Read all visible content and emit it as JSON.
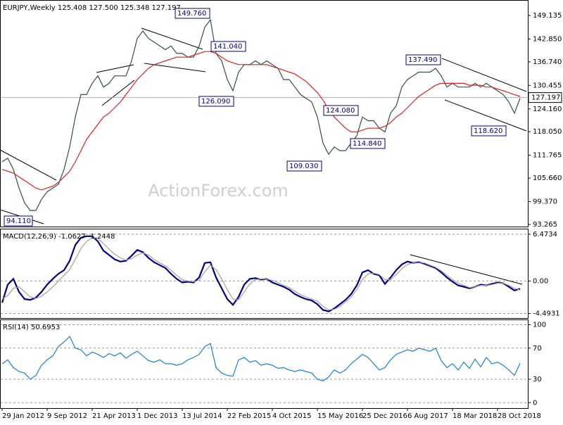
{
  "chart_data": [
    {
      "type": "line",
      "title": "EURJPY,Weekly  125.408 127.500 125.348 127.197",
      "xlim": [
        -0.375,
        93.375
      ],
      "xticks": [
        {
          "value": 0,
          "label": "29 Jan 2012"
        },
        {
          "value": 8,
          "label": "9 Sep 2012"
        },
        {
          "value": 16,
          "label": "21 Apr 2013"
        },
        {
          "value": 24,
          "label": "1 Dec 2013"
        },
        {
          "value": 32,
          "label": "13 Jul 2014"
        },
        {
          "value": 40,
          "label": "22 Feb 2015"
        },
        {
          "value": 48,
          "label": "4 Oct 2015"
        },
        {
          "value": 56,
          "label": "15 May 2016"
        },
        {
          "value": 64,
          "label": "25 Dec 2016"
        },
        {
          "value": 72,
          "label": "6 Aug 2017"
        },
        {
          "value": 80,
          "label": "18 Mar 2018"
        },
        {
          "value": 88,
          "label": "28 Oct 2018"
        }
      ],
      "ylim": [
        92.7,
        152.9
      ],
      "yticks": [
        149.135,
        {
          "value": 142.85,
          "label": "142.850"
        },
        {
          "value": 136.74,
          "label": "136.740"
        },
        130.455,
        {
          "value": 124.16,
          "label": "124.160"
        },
        {
          "value": 118.05,
          "label": "118.050"
        },
        111.765,
        {
          "value": 105.66,
          "label": "105.660"
        },
        {
          "value": 99.37,
          "label": "99.370"
        },
        93.265
      ],
      "last_price": 127.197,
      "watermark": "ActionForex.com",
      "annotations": [
        "149.760",
        "141.040",
        "137.490",
        "126.090",
        "124.080",
        "118.620",
        "114.840",
        "109.030",
        "94.110"
      ],
      "series": [
        {
          "color": "#2f4f4f",
          "values": [
            110,
            111,
            108,
            103,
            99,
            97,
            97,
            100,
            102,
            103,
            104,
            108,
            114,
            122,
            128,
            128,
            131,
            133,
            130,
            131,
            133,
            133,
            133,
            137,
            143,
            145,
            143,
            142,
            141,
            140,
            141,
            139,
            139,
            138,
            138,
            141,
            146,
            148,
            139,
            137,
            132,
            129,
            134,
            136,
            136,
            137,
            136,
            137,
            136,
            135,
            132,
            132,
            130,
            128,
            127,
            126,
            122,
            115,
            112,
            114,
            113,
            113,
            115,
            117,
            122,
            121,
            121,
            119,
            118,
            123,
            125,
            130,
            132,
            133,
            134,
            134,
            134,
            135,
            133,
            130,
            131,
            130,
            130,
            130,
            131,
            130,
            131,
            130,
            129,
            128,
            126,
            123,
            127
          ]
        },
        {
          "color": "#e0201e",
          "values": [
            108,
            107.5,
            107,
            106,
            105,
            104,
            103,
            102.5,
            103,
            103.5,
            104.5,
            106,
            107.5,
            110,
            113,
            116,
            118,
            120,
            122,
            123,
            124.5,
            126,
            128,
            130,
            132,
            133.5,
            135,
            136,
            136.5,
            137,
            137.5,
            138,
            138,
            138,
            138.5,
            139,
            139.5,
            139.5,
            139,
            138,
            137,
            136.5,
            136,
            136,
            136,
            136,
            136,
            136,
            135.5,
            135,
            134.5,
            134,
            133.5,
            132.5,
            131.5,
            130,
            128.5,
            126.5,
            124,
            122,
            120.5,
            119,
            118,
            118,
            118.5,
            119,
            119,
            119,
            119.5,
            120.5,
            122,
            123,
            124.5,
            126,
            127.5,
            128.5,
            129.5,
            130.5,
            131,
            131,
            131,
            131,
            131,
            130.5,
            130.5,
            130.5,
            130,
            130,
            129.5,
            129,
            128.5,
            128,
            127.5
          ]
        }
      ]
    },
    {
      "type": "line",
      "title": "MACD(12,26,9) -1.0627 -1.2448",
      "ylim": [
        -5.12,
        7.05
      ],
      "yticks": [
        6.4734,
        {
          "value": 0,
          "label": "0.00"
        },
        -4.4931
      ],
      "grid": true,
      "series": [
        {
          "color": "#000080",
          "values": [
            -3,
            -0.5,
            0.3,
            -1.5,
            -2.5,
            -2.6,
            -2.3,
            -1.5,
            -0.5,
            0.3,
            1,
            1.5,
            2.8,
            5,
            6,
            6.2,
            6.2,
            5.5,
            4.2,
            3.6,
            3,
            2.7,
            2.8,
            3.5,
            4.3,
            4,
            3.2,
            2.6,
            2.2,
            1.8,
            1,
            0.3,
            -0.2,
            -0.1,
            -0.2,
            0.5,
            2.5,
            2.6,
            0.5,
            -1,
            -2.5,
            -3.3,
            -2.2,
            -0.5,
            0.3,
            0.4,
            0.2,
            0.3,
            -0.2,
            -0.5,
            -0.8,
            -1.2,
            -1.8,
            -2.2,
            -2.5,
            -2.7,
            -3.2,
            -4,
            -4.2,
            -3.8,
            -3.2,
            -2.6,
            -1.8,
            -0.6,
            1.2,
            1.5,
            1,
            0.8,
            -0.4,
            0.5,
            1.5,
            2.3,
            2.7,
            2.5,
            2.6,
            2.4,
            2.1,
            1.8,
            1.2,
            0.5,
            -0.1,
            -0.6,
            -0.8,
            -1,
            -0.8,
            -0.5,
            -0.6,
            -0.4,
            -0.2,
            -0.3,
            -0.8,
            -1.3,
            -1.0627
          ]
        },
        {
          "color": "#a0a0a0",
          "values": [
            -2.5,
            -2,
            -1,
            -0.8,
            -1.5,
            -2.2,
            -2.4,
            -2.1,
            -1.5,
            -0.8,
            0,
            0.8,
            1.6,
            3,
            4.5,
            5.5,
            6,
            5.9,
            5.2,
            4.4,
            3.7,
            3.2,
            2.9,
            3.1,
            3.6,
            3.9,
            3.6,
            3,
            2.5,
            2.1,
            1.5,
            0.8,
            0.2,
            0,
            -0.1,
            0.1,
            1.3,
            2.2,
            1.6,
            0.3,
            -1.2,
            -2.5,
            -2.6,
            -1.5,
            -0.4,
            0.2,
            0.3,
            0.3,
            0.1,
            -0.2,
            -0.6,
            -0.9,
            -1.4,
            -1.9,
            -2.2,
            -2.5,
            -2.8,
            -3.5,
            -4,
            -3.9,
            -3.5,
            -2.9,
            -2.2,
            -1.2,
            0.2,
            1,
            1.1,
            0.9,
            0.2,
            0.2,
            0.9,
            1.7,
            2.3,
            2.5,
            2.5,
            2.5,
            2.2,
            1.9,
            1.4,
            0.8,
            0.2,
            -0.3,
            -0.6,
            -0.9,
            -0.8,
            -0.6,
            -0.6,
            -0.5,
            -0.3,
            -0.3,
            -0.6,
            -1,
            -1.2448
          ]
        }
      ]
    },
    {
      "type": "line",
      "title": "RSI(14) 50.6953",
      "ylim": [
        -7,
        105
      ],
      "yticks": [
        100,
        70,
        30,
        0
      ],
      "grid": true,
      "series": [
        {
          "color": "#1e7fd0",
          "values": [
            50,
            55,
            45,
            40,
            38,
            30,
            35,
            48,
            55,
            60,
            72,
            78,
            85,
            70,
            68,
            60,
            65,
            62,
            58,
            63,
            60,
            64,
            57,
            62,
            66,
            60,
            54,
            52,
            55,
            50,
            50,
            48,
            50,
            55,
            58,
            62,
            72,
            76,
            45,
            38,
            35,
            34,
            55,
            58,
            52,
            54,
            48,
            50,
            48,
            44,
            45,
            42,
            40,
            42,
            40,
            38,
            30,
            28,
            33,
            42,
            38,
            42,
            50,
            56,
            62,
            58,
            50,
            42,
            45,
            55,
            62,
            65,
            68,
            66,
            70,
            68,
            66,
            70,
            54,
            45,
            50,
            42,
            52,
            44,
            56,
            46,
            58,
            50,
            52,
            48,
            42,
            35,
            50.6953
          ]
        }
      ]
    }
  ]
}
